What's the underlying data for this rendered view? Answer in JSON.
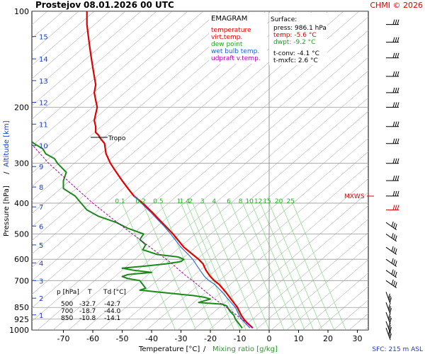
{
  "header": {
    "station": "Prostejov",
    "datetime": "08.01.2026 00 UTC",
    "credit": "CHMI © 2026"
  },
  "legend": {
    "title": "EMAGRAM",
    "items": [
      {
        "label": "temperature",
        "color": "#e00000"
      },
      {
        "label": "virt.temp.",
        "color": "#e00000"
      },
      {
        "label": "dew point",
        "color": "#20a020"
      },
      {
        "label": "wet bulb temp.",
        "color": "#2060d0"
      },
      {
        "label": "udpraft v.temp.",
        "color": "#b000b0"
      }
    ]
  },
  "surface": {
    "title": "Surface:",
    "lines": [
      {
        "text": "press: 986.1 hPa",
        "color": "#000000"
      },
      {
        "text": "temp: -5.6 °C",
        "color": "#e00000"
      },
      {
        "text": "dwpt: -9.2 °C",
        "color": "#20a020"
      },
      {
        "text": "t-conv: -4.1 °C",
        "color": "#000000"
      },
      {
        "text": "t-mxfc: 2.6 °C",
        "color": "#000000"
      }
    ]
  },
  "table": {
    "headers": [
      "p [hPa]",
      "T",
      "Td [°C]"
    ],
    "rows": [
      [
        "500",
        "-32.7",
        "-42.7"
      ],
      [
        "700",
        "-18.7",
        "-44.0"
      ],
      [
        "850",
        "-10.8",
        "-14.1"
      ]
    ]
  },
  "labels": {
    "tropo": "Tropo",
    "mxws": "MXWS",
    "sfc": "SFC: 215 m ASL",
    "ylabel_pressure": "Pressure [hPa]",
    "ylabel_sep": "/",
    "ylabel_altitude": "Altitude [km]",
    "xlabel_temp": "Temperature [°C]",
    "xlabel_sep": "/",
    "xlabel_mix": "Mixing ratio [g/kg]"
  },
  "colors": {
    "temperature": "#e00000",
    "dewpoint": "#1a8a1a",
    "wetbulb": "#3070d0",
    "parcel": "#a000a0",
    "isotherm": "#b8b8b8",
    "mixing_ratio": "#90e090",
    "altitude": "#1a3cc8"
  },
  "chart_data": {
    "type": "line",
    "x_axis": {
      "label": "Temperature [°C]",
      "range": [
        -80,
        30
      ],
      "ticks": [
        -70,
        -60,
        -50,
        -40,
        -30,
        -20,
        -10,
        0,
        10,
        20,
        30
      ]
    },
    "y_axis": {
      "label": "Pressure [hPa]",
      "scale": "log",
      "range": [
        1000,
        100
      ],
      "ticks": [
        100,
        200,
        300,
        400,
        500,
        600,
        700,
        850,
        925,
        1000
      ]
    },
    "altitude_ticks_km": [
      "1",
      "2",
      "3",
      "4",
      "5",
      "6",
      "7",
      "8",
      "9",
      "10",
      "11",
      "12",
      "13",
      "14",
      "15"
    ],
    "altitude_pressure_hPa": [
      897,
      795,
      700,
      616,
      541,
      472,
      411,
      356,
      307,
      264,
      226,
      193,
      165,
      141,
      120
    ],
    "mixing_ratio_labels": [
      "0.1",
      "0.2",
      "0.5",
      "1",
      "1.4",
      "2",
      "3",
      "4",
      "6",
      "8",
      "10",
      "12",
      "15",
      "20",
      "25"
    ],
    "mixing_ratio_label_temp_C": [
      -50,
      -43,
      -37,
      -30,
      -28,
      -26,
      -22,
      -18,
      -13,
      -9,
      -6,
      -3,
      0,
      4,
      8
    ],
    "series": [
      {
        "name": "temperature",
        "pressure": [
          986,
          950,
          925,
          900,
          850,
          800,
          760,
          720,
          700,
          680,
          650,
          620,
          600,
          580,
          550,
          500,
          470,
          450,
          430,
          400,
          380,
          360,
          340,
          320,
          300,
          280,
          260,
          250,
          245,
          240,
          230,
          220,
          210,
          200,
          190,
          180,
          170,
          160,
          150,
          140,
          130,
          120,
          110,
          100
        ],
        "temp": [
          -5.6,
          -7.5,
          -8.6,
          -9.5,
          -10.8,
          -13.0,
          -14.8,
          -17.0,
          -18.7,
          -20.0,
          -21.5,
          -22.5,
          -24.0,
          -26.0,
          -29.0,
          -32.7,
          -35.5,
          -37.5,
          -39.5,
          -43.0,
          -46.0,
          -48.0,
          -50.0,
          -52.0,
          -54.0,
          -55.5,
          -56.0,
          -57.5,
          -58.0,
          -59.0,
          -59.0,
          -59.5,
          -59.0,
          -58.5,
          -59.0,
          -59.5,
          -59.0,
          -59.5,
          -60.0,
          -60.5,
          -61.0,
          -61.5,
          -62.0,
          -62.0
        ]
      },
      {
        "name": "dew point",
        "pressure": [
          986,
          950,
          925,
          900,
          870,
          850,
          840,
          830,
          820,
          800,
          790,
          780,
          770,
          760,
          750,
          740,
          720,
          700,
          690,
          680,
          670,
          660,
          650,
          640,
          630,
          620,
          610,
          600,
          590,
          580,
          560,
          540,
          520,
          500,
          480,
          460,
          440,
          420,
          400,
          380,
          360,
          340,
          320,
          300,
          290,
          280,
          270,
          260,
          250
        ],
        "temp": [
          -9.2,
          -10.5,
          -11.5,
          -12.0,
          -13.5,
          -14.1,
          -14.5,
          -16.0,
          -24.0,
          -20.0,
          -22.0,
          -26.0,
          -32.0,
          -38.0,
          -44.0,
          -42.0,
          -43.0,
          -44.0,
          -48.0,
          -50.0,
          -48.0,
          -40.0,
          -46.0,
          -50.0,
          -42.0,
          -35.0,
          -30.0,
          -29.0,
          -31.0,
          -38.0,
          -43.0,
          -42.0,
          -44.0,
          -42.7,
          -48.0,
          -52.0,
          -58.0,
          -62.0,
          -64.0,
          -66.0,
          -70.0,
          -70.0,
          -69.0,
          -72.0,
          -73.0,
          -76.0,
          -77.0,
          -80.0,
          -82.0
        ]
      },
      {
        "name": "wet bulb temp.",
        "pressure": [
          986,
          950,
          925,
          900,
          850,
          800,
          760,
          720,
          700,
          680,
          650,
          620,
          600,
          580,
          550,
          500,
          470,
          450,
          430,
          400,
          380
        ],
        "temp": [
          -6.5,
          -8.3,
          -9.3,
          -10.2,
          -11.5,
          -14.0,
          -16.0,
          -18.5,
          -20.5,
          -22.0,
          -23.5,
          -25.0,
          -26.0,
          -27.5,
          -30.0,
          -33.5,
          -36.0,
          -38.0,
          -40.0,
          -43.5,
          -46.0
        ]
      },
      {
        "name": "udpraft v.temp.",
        "pressure": [
          986,
          900,
          850,
          800,
          760,
          720,
          700,
          680,
          650,
          620,
          600,
          550,
          500,
          450,
          400,
          350,
          300,
          260
        ],
        "temp": [
          -5.5,
          -11.0,
          -14.5,
          -18.5,
          -21.5,
          -24.5,
          -26.0,
          -28.0,
          -30.5,
          -33.0,
          -35.0,
          -40.5,
          -46.5,
          -53.0,
          -60.0,
          -67.0,
          -75.0,
          -81.0
        ]
      }
    ]
  }
}
